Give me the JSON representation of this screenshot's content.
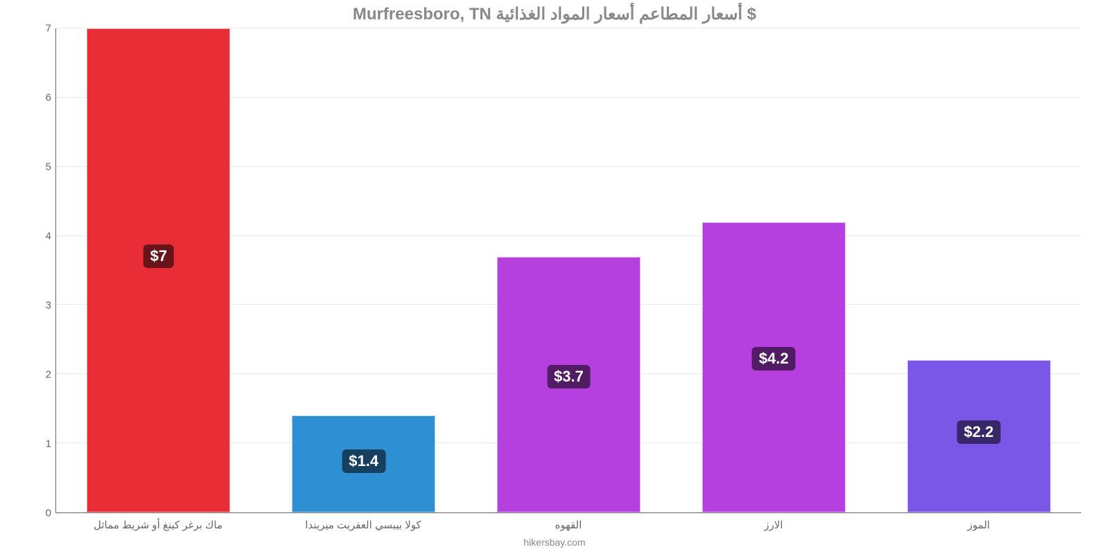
{
  "chart": {
    "type": "bar",
    "title": "Murfreesboro, TN أسعار المطاعم أسعار المواد الغذائية $",
    "source": "hikersbay.com",
    "background_color": "#ffffff",
    "title_color": "#888888",
    "title_fontsize": 24,
    "axis_label_color": "#666666",
    "axis_label_fontsize": 15,
    "value_label_fontsize": 22,
    "value_label_bg": "rgba(0,0,0,0.55)",
    "value_label_color": "#ffffff",
    "ylim": [
      0,
      7
    ],
    "ytick_step": 1,
    "bar_width_pct": 14,
    "bars": [
      {
        "category": "ماك برغر كينغ أو شريط مماثل",
        "value": 7.0,
        "display": "$7",
        "color": "#e82d36",
        "center_pct": 10
      },
      {
        "category": "كولا بيبسي العفريت ميريندا",
        "value": 1.4,
        "display": "$1.4",
        "color": "#2f8fd3",
        "center_pct": 30
      },
      {
        "category": "القهوه",
        "value": 3.7,
        "display": "$3.7",
        "color": "#b63fe0",
        "center_pct": 50
      },
      {
        "category": "الارز",
        "value": 4.2,
        "display": "$4.2",
        "color": "#b63fe0",
        "center_pct": 70
      },
      {
        "category": "الموز",
        "value": 2.2,
        "display": "$2.2",
        "color": "#7b57e8",
        "center_pct": 90
      }
    ],
    "yticks": [
      "0",
      "1",
      "2",
      "3",
      "4",
      "5",
      "6",
      "7"
    ]
  }
}
